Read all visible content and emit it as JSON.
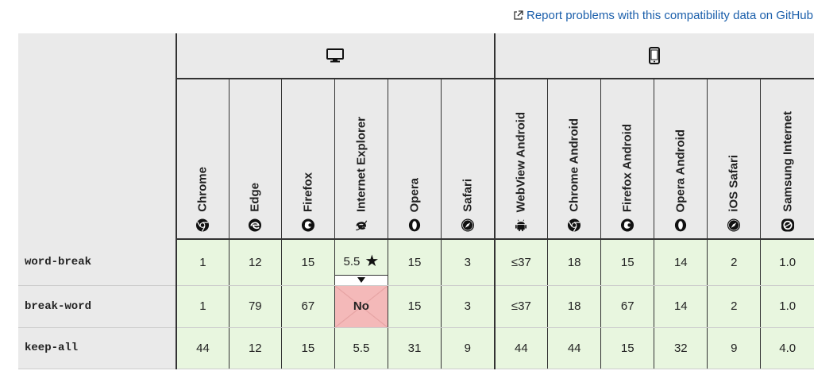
{
  "report": {
    "label": "Report problems with this compatibility data on GitHub",
    "icon": "external-link-icon"
  },
  "platforms": [
    {
      "name": "desktop",
      "icon": "desktop-icon"
    },
    {
      "name": "mobile",
      "icon": "mobile-icon"
    }
  ],
  "browsers": [
    {
      "label": "Chrome",
      "icon": "chrome-icon"
    },
    {
      "label": "Edge",
      "icon": "edge-icon"
    },
    {
      "label": "Firefox",
      "icon": "firefox-icon"
    },
    {
      "label": "Internet Explorer",
      "icon": "ie-icon"
    },
    {
      "label": "Opera",
      "icon": "opera-icon"
    },
    {
      "label": "Safari",
      "icon": "safari-icon"
    },
    {
      "label": "WebView Android",
      "icon": "android-icon"
    },
    {
      "label": "Chrome Android",
      "icon": "chrome-icon"
    },
    {
      "label": "Firefox Android",
      "icon": "firefox-icon"
    },
    {
      "label": "Opera Android",
      "icon": "opera-icon"
    },
    {
      "label": "iOS Safari",
      "icon": "safari-icon"
    },
    {
      "label": "Samsung Internet",
      "icon": "samsung-icon"
    }
  ],
  "rows": [
    {
      "feature": "word-break",
      "values": [
        "1",
        "12",
        "15",
        "5.5",
        "15",
        "3",
        "≤37",
        "18",
        "15",
        "14",
        "2",
        "1.0"
      ]
    },
    {
      "feature": "break-word",
      "values": [
        "1",
        "79",
        "67",
        "No",
        "15",
        "3",
        "≤37",
        "18",
        "67",
        "14",
        "2",
        "1.0"
      ]
    },
    {
      "feature": "keep-all",
      "values": [
        "44",
        "12",
        "15",
        "5.5",
        "31",
        "9",
        "44",
        "44",
        "15",
        "32",
        "9",
        "4.0"
      ]
    }
  ],
  "colors": {
    "supported": "#e8f6df",
    "unsupported": "#f4b9b9",
    "header": "#eaeaea",
    "link": "#1b5fab"
  }
}
